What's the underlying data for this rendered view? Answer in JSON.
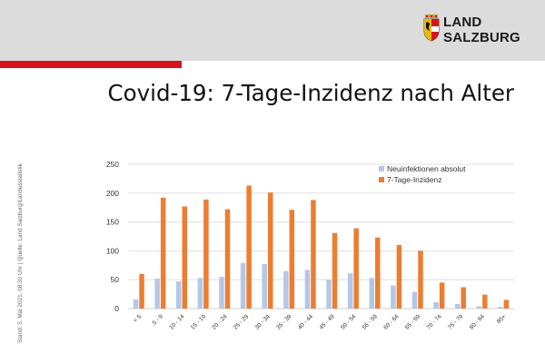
{
  "header": {
    "logo": {
      "line1": "LAND",
      "line2": "SALZBURG"
    },
    "title": "Covid-19: 7-Tage-Inzidenz nach Alter"
  },
  "side_note": "Stand: 5. Mai 2021, 08:30 Uhr | Quelle: Land Salzburg/Landesstatistik",
  "colors": {
    "header_band": "#dcdcdc",
    "accent_red": "#d7141e",
    "series_absolute": "#b4c7e7",
    "series_incidence": "#ed7d31"
  },
  "chart_data": {
    "type": "bar",
    "categories": [
      "< 5",
      "5 - 9",
      "10 - 14",
      "15 - 19",
      "20 - 24",
      "25 - 29",
      "30 - 34",
      "35 - 39",
      "40 - 44",
      "45 - 49",
      "50 - 54",
      "55 - 59",
      "60 - 64",
      "65 - 69",
      "70 - 74",
      "75 - 79",
      "80 - 84",
      "85+"
    ],
    "series": [
      {
        "name": "Neuinfektionen absolut",
        "color": "#b4c7e7",
        "values": [
          16,
          52,
          47,
          53,
          55,
          79,
          77,
          65,
          67,
          50,
          61,
          53,
          40,
          29,
          11,
          8,
          4,
          3
        ]
      },
      {
        "name": "7-Tage-Inzidenz",
        "color": "#ed7d31",
        "values": [
          60,
          192,
          177,
          189,
          172,
          213,
          201,
          171,
          188,
          131,
          139,
          123,
          110,
          100,
          45,
          37,
          24,
          15
        ]
      }
    ],
    "yticks": [
      "0",
      "50",
      "100",
      "150",
      "200",
      "250"
    ],
    "ylim": [
      0,
      250
    ],
    "grid": true,
    "legend_position": "top-right"
  }
}
